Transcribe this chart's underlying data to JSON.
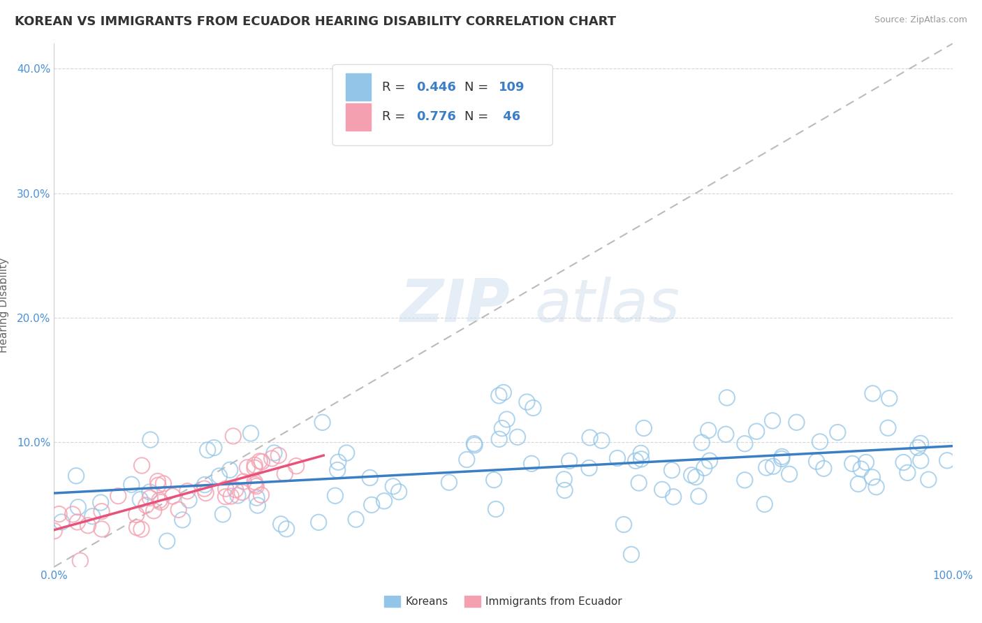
{
  "title": "KOREAN VS IMMIGRANTS FROM ECUADOR HEARING DISABILITY CORRELATION CHART",
  "source": "Source: ZipAtlas.com",
  "ylabel": "Hearing Disability",
  "xlim": [
    0.0,
    1.0
  ],
  "ylim": [
    0.0,
    0.42
  ],
  "korean_R": 0.446,
  "korean_N": 109,
  "ecuador_R": 0.776,
  "ecuador_N": 46,
  "korean_color": "#92C5E8",
  "ecuador_color": "#F4A0B0",
  "korean_line_color": "#3A7EC6",
  "ecuador_line_color": "#E8527A",
  "trend_line_color": "#BBBBBB",
  "background_color": "#FFFFFF",
  "watermark_zip": "ZIP",
  "watermark_atlas": "atlas",
  "title_fontsize": 13,
  "axis_label_fontsize": 11,
  "tick_label_fontsize": 11,
  "legend_fontsize": 13
}
